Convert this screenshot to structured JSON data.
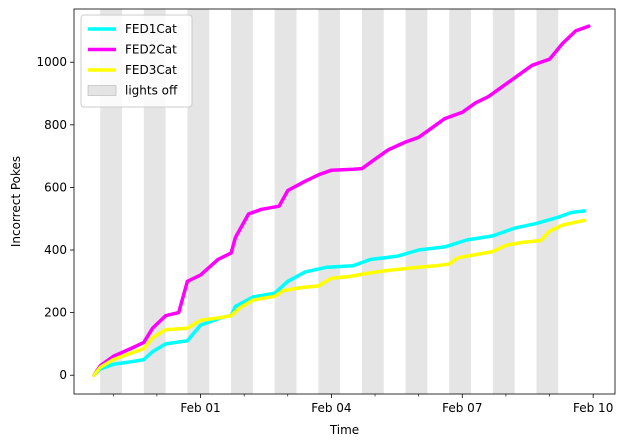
{
  "chart_data": {
    "type": "line",
    "xlabel": "Time",
    "ylabel": "Incorrect Pokes",
    "x_unit": "days",
    "xlim": [
      -0.6,
      11.8
    ],
    "ylim": [
      -60,
      1170
    ],
    "x_ticks": [
      {
        "x": 2.3,
        "label": "Feb 01"
      },
      {
        "x": 5.3,
        "label": "Feb 04"
      },
      {
        "x": 8.3,
        "label": "Feb 07"
      },
      {
        "x": 11.3,
        "label": "Feb 10"
      }
    ],
    "x_minor_ticks": [
      0.3,
      1.3,
      3.3,
      4.3,
      6.3,
      7.3,
      9.3,
      10.3
    ],
    "y_ticks": [
      0,
      200,
      400,
      600,
      800,
      1000
    ],
    "legend_position": "upper left",
    "grid": false,
    "lights_off": {
      "label": "lights off",
      "color": "#d3d3d3",
      "intervals": [
        [
          0.0,
          0.5
        ],
        [
          1.0,
          1.5
        ],
        [
          2.0,
          2.5
        ],
        [
          3.0,
          3.5
        ],
        [
          4.0,
          4.5
        ],
        [
          5.0,
          5.5
        ],
        [
          6.0,
          6.5
        ],
        [
          7.0,
          7.5
        ],
        [
          8.0,
          8.5
        ],
        [
          9.0,
          9.5
        ],
        [
          10.0,
          10.5
        ]
      ]
    },
    "series": [
      {
        "name": "FED1Cat",
        "color": "#00ffff",
        "points": [
          [
            -0.14,
            0
          ],
          [
            0.0,
            20
          ],
          [
            0.3,
            35
          ],
          [
            0.7,
            43
          ],
          [
            1.0,
            50
          ],
          [
            1.2,
            75
          ],
          [
            1.5,
            100
          ],
          [
            2.0,
            110
          ],
          [
            2.3,
            160
          ],
          [
            2.8,
            185
          ],
          [
            3.0,
            190
          ],
          [
            3.1,
            220
          ],
          [
            3.5,
            250
          ],
          [
            4.0,
            262
          ],
          [
            4.3,
            300
          ],
          [
            4.7,
            330
          ],
          [
            5.2,
            345
          ],
          [
            5.8,
            350
          ],
          [
            6.2,
            370
          ],
          [
            6.8,
            380
          ],
          [
            7.3,
            400
          ],
          [
            7.9,
            410
          ],
          [
            8.4,
            432
          ],
          [
            9.0,
            445
          ],
          [
            9.5,
            470
          ],
          [
            10.0,
            485
          ],
          [
            10.5,
            505
          ],
          [
            10.8,
            520
          ],
          [
            11.1,
            525
          ]
        ]
      },
      {
        "name": "FED2Cat",
        "color": "#ff00ff",
        "points": [
          [
            -0.14,
            0
          ],
          [
            0.0,
            30
          ],
          [
            0.3,
            60
          ],
          [
            0.7,
            85
          ],
          [
            1.0,
            105
          ],
          [
            1.2,
            150
          ],
          [
            1.5,
            190
          ],
          [
            1.8,
            200
          ],
          [
            2.0,
            300
          ],
          [
            2.3,
            320
          ],
          [
            2.7,
            370
          ],
          [
            3.0,
            390
          ],
          [
            3.1,
            440
          ],
          [
            3.4,
            515
          ],
          [
            3.7,
            530
          ],
          [
            4.1,
            540
          ],
          [
            4.3,
            590
          ],
          [
            4.7,
            620
          ],
          [
            5.0,
            640
          ],
          [
            5.3,
            655
          ],
          [
            5.8,
            658
          ],
          [
            6.0,
            660
          ],
          [
            6.3,
            690
          ],
          [
            6.6,
            720
          ],
          [
            7.0,
            745
          ],
          [
            7.3,
            760
          ],
          [
            7.6,
            790
          ],
          [
            7.9,
            820
          ],
          [
            8.3,
            840
          ],
          [
            8.6,
            870
          ],
          [
            8.9,
            890
          ],
          [
            9.3,
            930
          ],
          [
            9.6,
            960
          ],
          [
            9.9,
            990
          ],
          [
            10.3,
            1010
          ],
          [
            10.6,
            1060
          ],
          [
            10.9,
            1100
          ],
          [
            11.2,
            1115
          ]
        ]
      },
      {
        "name": "FED3Cat",
        "color": "#ffff00",
        "points": [
          [
            -0.14,
            0
          ],
          [
            0.0,
            25
          ],
          [
            0.3,
            50
          ],
          [
            0.7,
            70
          ],
          [
            1.0,
            85
          ],
          [
            1.2,
            120
          ],
          [
            1.5,
            145
          ],
          [
            2.0,
            150
          ],
          [
            2.3,
            175
          ],
          [
            2.8,
            185
          ],
          [
            3.0,
            190
          ],
          [
            3.2,
            215
          ],
          [
            3.5,
            240
          ],
          [
            4.0,
            252
          ],
          [
            4.2,
            270
          ],
          [
            4.6,
            280
          ],
          [
            5.0,
            285
          ],
          [
            5.3,
            310
          ],
          [
            5.7,
            315
          ],
          [
            6.1,
            325
          ],
          [
            6.6,
            335
          ],
          [
            7.3,
            345
          ],
          [
            7.7,
            350
          ],
          [
            8.0,
            355
          ],
          [
            8.2,
            375
          ],
          [
            8.6,
            385
          ],
          [
            9.0,
            395
          ],
          [
            9.3,
            415
          ],
          [
            9.7,
            425
          ],
          [
            10.1,
            430
          ],
          [
            10.3,
            460
          ],
          [
            10.6,
            480
          ],
          [
            11.1,
            495
          ]
        ]
      }
    ]
  }
}
